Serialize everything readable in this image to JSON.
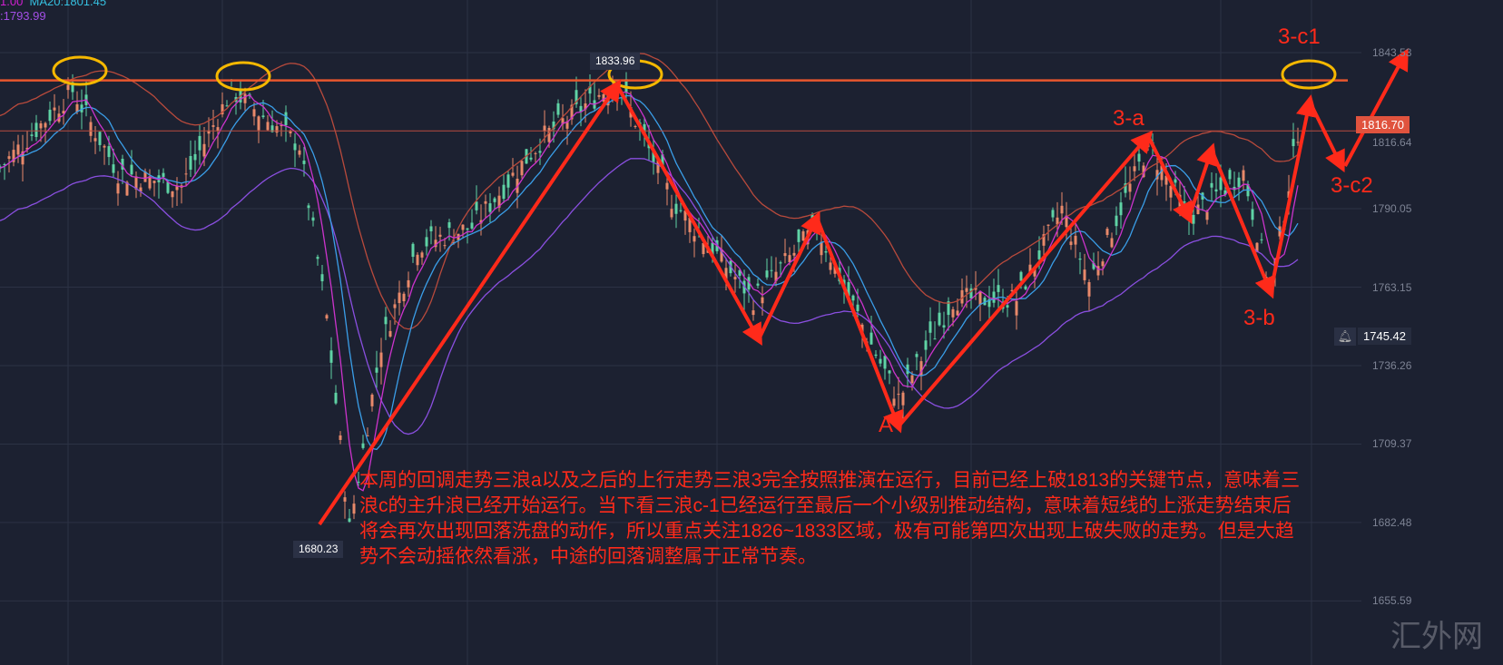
{
  "legend": {
    "line1_a": "1.00",
    "line1_b": "MA20:1801.45",
    "line2": ":1793.99"
  },
  "colors": {
    "bg": "#1c2131",
    "up": "#e8896a",
    "down": "#5fd3a5",
    "ma_fast": "#cc33cc",
    "ma_slow": "#3a9ee8",
    "band": "#b84a3c",
    "band_low": "#8a4fe0",
    "annot": "#ff2a1a",
    "circle": "#f5b800",
    "level": "#e8572e"
  },
  "price_tags": {
    "current": "1816.70",
    "bell_value": "1745.42",
    "bell_icon": "bell-icon"
  },
  "markers": {
    "high": "1833.96",
    "low": "1680.23"
  },
  "labels": {
    "c1": "3-c1",
    "a": "3-a",
    "b": "3-b",
    "c2": "3-c2",
    "A": "A"
  },
  "note": "本周的回调走势三浪a以及之后的上行走势三浪3完全按照推演在运行，目前已经上破1813的关键节点，意味着三浪c的主升浪已经开始运行。当下看三浪c-1已经运行至最后一个小级别推动结构，意味着短线的上涨走势结束后将会再次出现回落洗盘的动作，所以重点关注1826~1833区域，极有可能第四次出现上破失败的走势。但是大趋势不会动摇依然看涨，中途的回落调整属于正常节奏。",
  "watermark": "汇外网",
  "chart_data": {
    "type": "line",
    "title": "",
    "xlabel": "",
    "ylabel": "",
    "ylim": [
      1655.59,
      1850
    ],
    "y_ticks": [
      "1843.53",
      "1816.64",
      "1790.05",
      "1763.15",
      "1736.26",
      "1709.37",
      "1682.48",
      "1655.59"
    ],
    "grid": true,
    "resistance_level": 1834,
    "current_level": 1816.7,
    "price_path": {
      "x": [
        0,
        16,
        26,
        40,
        51,
        66,
        72,
        77,
        84,
        92,
        104,
        120,
        136,
        148,
        166,
        180,
        192,
        198,
        210,
        224,
        234,
        240,
        253,
        262,
        274,
        280,
        286
      ],
      "y": [
        1804,
        1830.5,
        1802.5,
        1797.8,
        1830.5,
        1811.8,
        1752.7,
        1680.23,
        1743.4,
        1777.6,
        1783.8,
        1814.9,
        1833.96,
        1793.2,
        1759,
        1783.8,
        1743.4,
        1724.7,
        1759,
        1759,
        1790,
        1765,
        1811.8,
        1786.9,
        1802.5,
        1762,
        1816.7
      ]
    },
    "forecast_path": {
      "x": [
        274,
        286,
        296,
        308
      ],
      "y": [
        1816.7,
        1828,
        1806,
        1840
      ]
    }
  }
}
